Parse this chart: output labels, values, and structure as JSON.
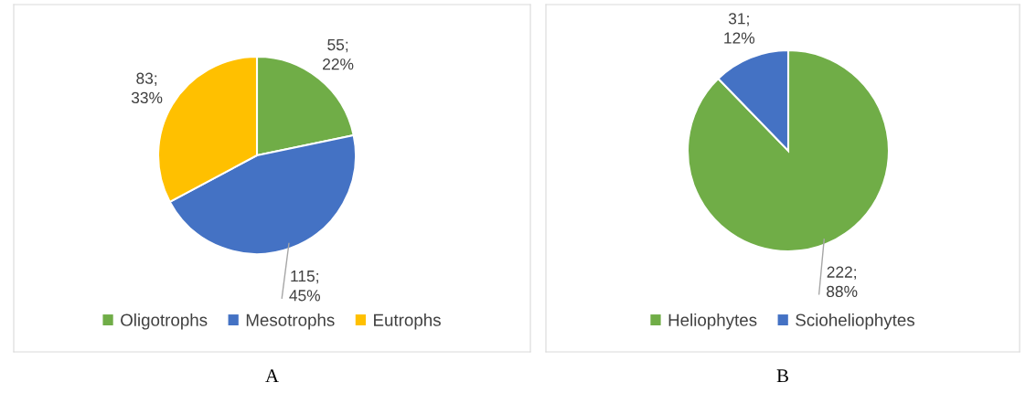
{
  "chart_data": [
    {
      "type": "pie",
      "categories": [
        "Oligotrophs",
        "Mesotrophs",
        "Eutrophs"
      ],
      "values": [
        55,
        115,
        83
      ],
      "colors": [
        "#70ad47",
        "#4472c4",
        "#ffc000"
      ],
      "value_labels": [
        "55;\n22%",
        "115;\n45%",
        "83;\n33%"
      ],
      "legend": "bottom",
      "annotations": [
        "A"
      ]
    },
    {
      "type": "pie",
      "categories": [
        "Heliophytes",
        "Scioheliophytes"
      ],
      "values": [
        222,
        31
      ],
      "colors": [
        "#70ad47",
        "#4472c4"
      ],
      "value_labels": [
        "222;\n88%",
        "31;\n12%"
      ],
      "legend": "bottom",
      "annotations": [
        "B"
      ]
    }
  ]
}
